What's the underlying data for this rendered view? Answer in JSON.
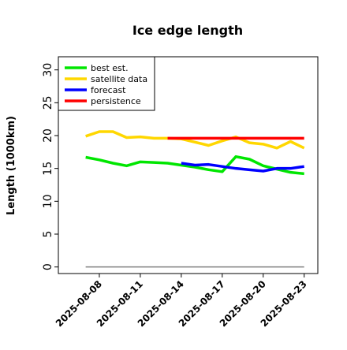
{
  "chart_data": {
    "type": "line",
    "title": "Ice edge length",
    "ylabel": "Length (1000km)",
    "xlabel": "",
    "ylim": [
      -1,
      32
    ],
    "xlim": [
      "2025-08-05",
      "2025-08-24"
    ],
    "y_ticks": [
      0,
      5,
      10,
      15,
      20,
      25,
      30
    ],
    "x_ticks": [
      "2025-08-08",
      "2025-08-11",
      "2025-08-14",
      "2025-08-17",
      "2025-08-20",
      "2025-08-23"
    ],
    "highlighted_x_tick": "2025-08-14",
    "highlight_color": "#228B22",
    "grid": false,
    "legend_position": "top-left",
    "baseline": {
      "y": 0,
      "x_start": "2025-08-07",
      "x_end": "2025-08-23",
      "color": "#808080"
    },
    "series": [
      {
        "name": "best est.",
        "color": "#00e600",
        "x": [
          "2025-08-07",
          "2025-08-08",
          "2025-08-09",
          "2025-08-10",
          "2025-08-11",
          "2025-08-12",
          "2025-08-13",
          "2025-08-14",
          "2025-08-15",
          "2025-08-16",
          "2025-08-17",
          "2025-08-18",
          "2025-08-19",
          "2025-08-20",
          "2025-08-21",
          "2025-08-22",
          "2025-08-23"
        ],
        "values": [
          16.7,
          16.3,
          15.8,
          15.4,
          16.0,
          15.9,
          15.8,
          15.5,
          15.2,
          14.8,
          14.5,
          16.8,
          16.4,
          15.4,
          14.9,
          14.4,
          14.2
        ]
      },
      {
        "name": "satellite data",
        "color": "#ffd700",
        "x": [
          "2025-08-07",
          "2025-08-08",
          "2025-08-09",
          "2025-08-10",
          "2025-08-11",
          "2025-08-12",
          "2025-08-13",
          "2025-08-14",
          "2025-08-15",
          "2025-08-16",
          "2025-08-17",
          "2025-08-18",
          "2025-08-19",
          "2025-08-20",
          "2025-08-21",
          "2025-08-22",
          "2025-08-23"
        ],
        "values": [
          19.9,
          20.6,
          20.6,
          19.7,
          19.8,
          19.6,
          19.6,
          19.5,
          19.0,
          18.5,
          19.2,
          19.8,
          18.9,
          18.7,
          18.1,
          19.1,
          18.1
        ]
      },
      {
        "name": "forecast",
        "color": "#0000ff",
        "x": [
          "2025-08-14",
          "2025-08-15",
          "2025-08-16",
          "2025-08-17",
          "2025-08-18",
          "2025-08-19",
          "2025-08-20",
          "2025-08-21",
          "2025-08-22",
          "2025-08-23"
        ],
        "values": [
          15.8,
          15.5,
          15.6,
          15.3,
          15.0,
          14.8,
          14.6,
          15.0,
          15.0,
          15.3
        ]
      },
      {
        "name": "persistence",
        "color": "#ff0000",
        "x": [
          "2025-08-13",
          "2025-08-23"
        ],
        "values": [
          19.6,
          19.6
        ]
      }
    ]
  }
}
